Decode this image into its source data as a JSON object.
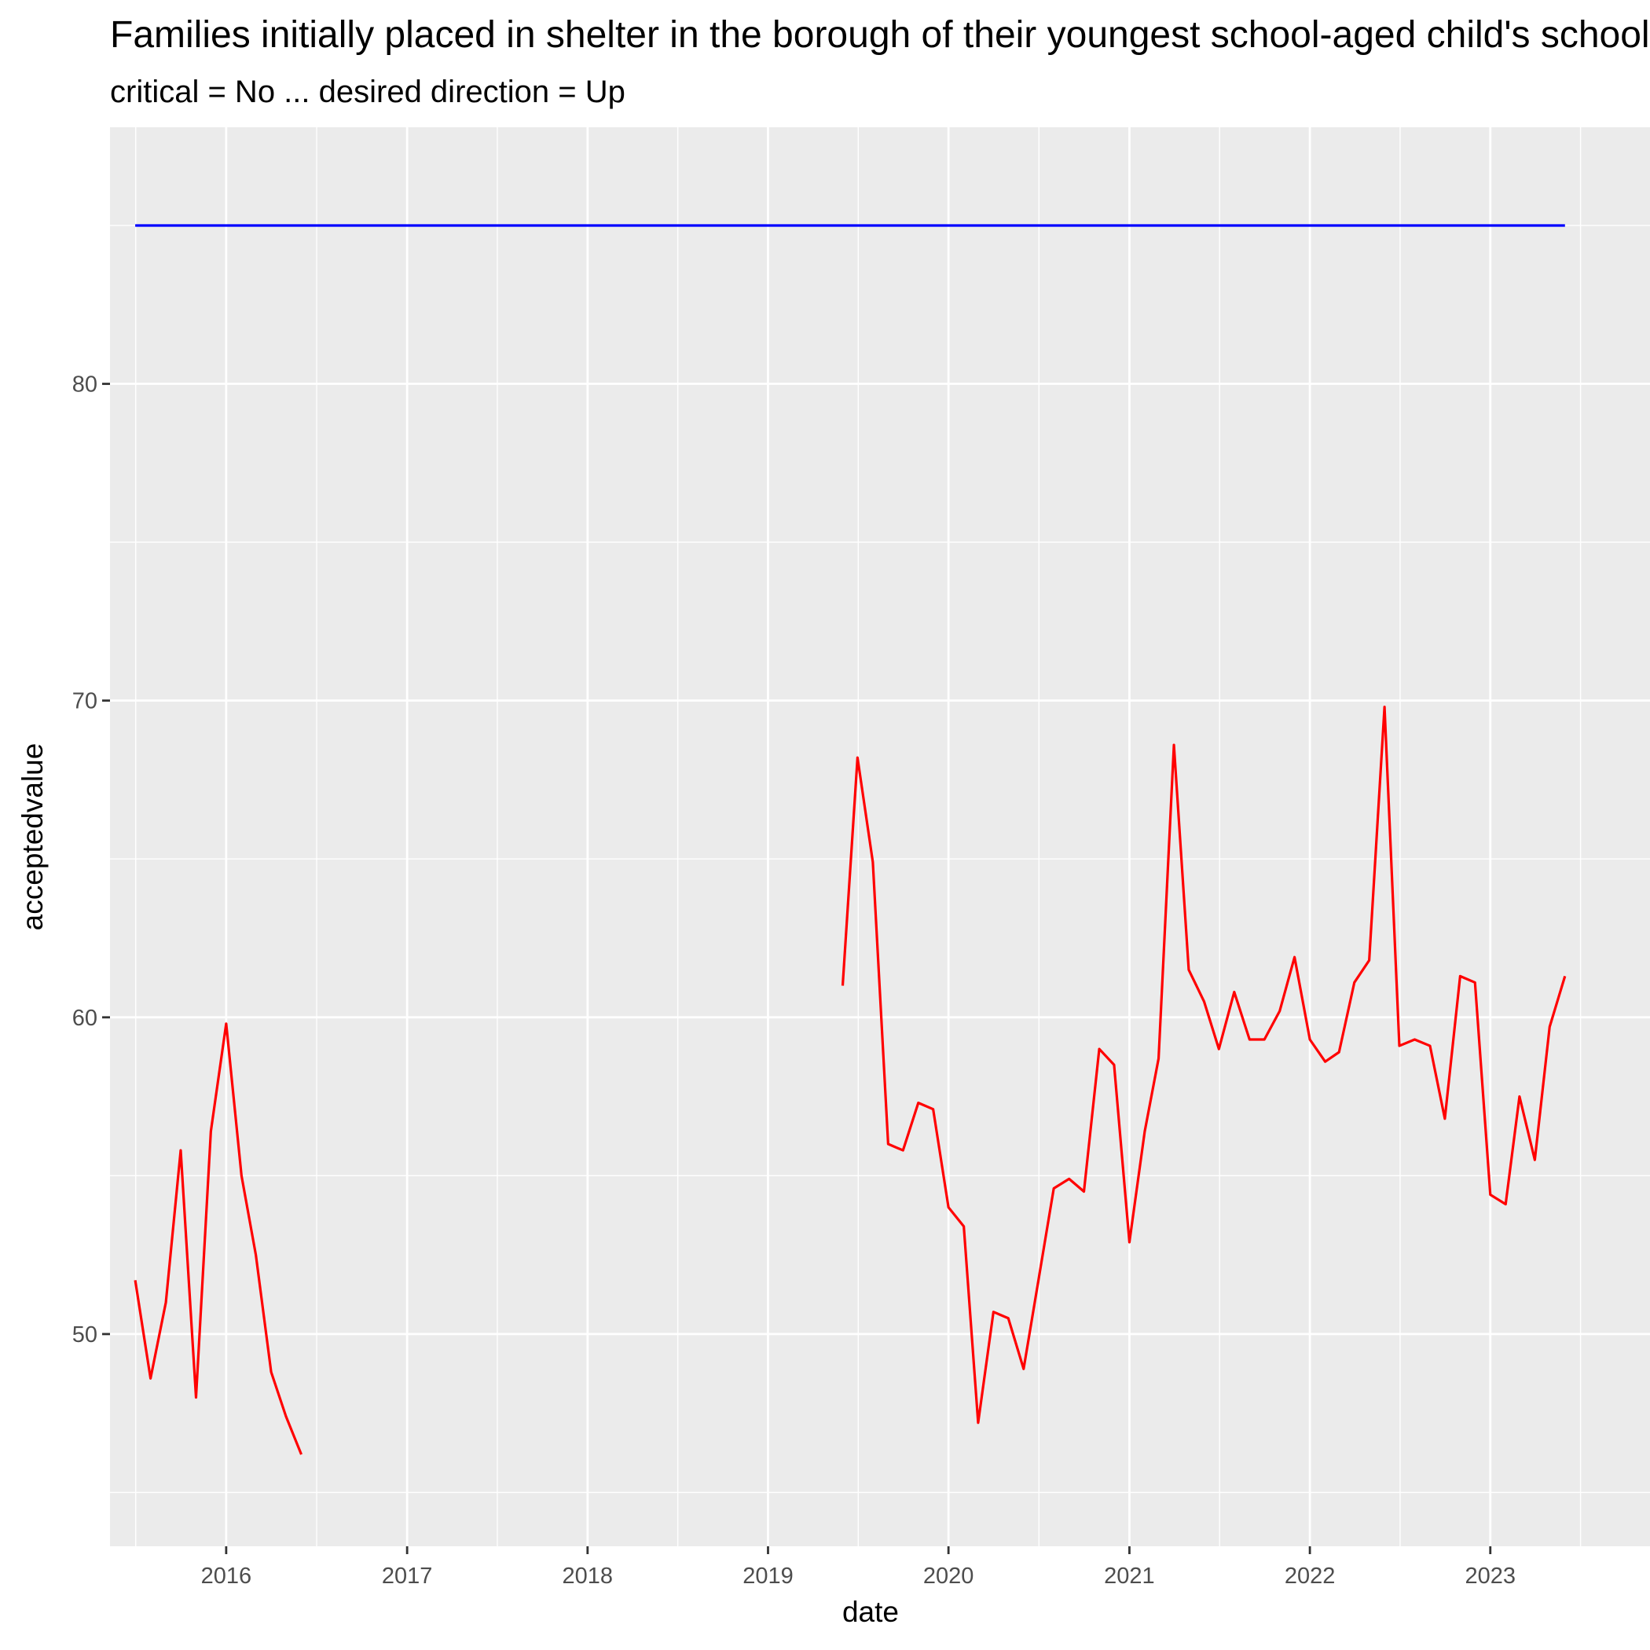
{
  "chart_data": {
    "type": "line",
    "title": "Families initially placed in shelter in the borough of their youngest school-aged child's school address",
    "subtitle": "critical = No ... desired direction = Up",
    "xlabel": "date",
    "ylabel": "acceptedvalue",
    "x_ticks": [
      "2016",
      "2017",
      "2018",
      "2019",
      "2020",
      "2021",
      "2022",
      "2023"
    ],
    "y_ticks": [
      50,
      60,
      70,
      80
    ],
    "xlim": [
      "2015-05-11",
      "2023-11-20"
    ],
    "ylim": [
      43.3,
      88.1
    ],
    "grid": true,
    "legend": "none",
    "colors": {
      "panel": "#ebebeb",
      "grid": "#ffffff",
      "target": "#0000ff",
      "actual": "#ff0000"
    },
    "series": [
      {
        "color": "#ff0000",
        "segments": [
          [
            [
              "2015-07-01",
              51.7
            ],
            [
              "2015-08-01",
              48.6
            ],
            [
              "2015-09-01",
              51.0
            ],
            [
              "2015-10-01",
              55.8
            ],
            [
              "2015-11-01",
              48.0
            ],
            [
              "2015-12-01",
              56.4
            ],
            [
              "2016-01-01",
              59.8
            ],
            [
              "2016-02-01",
              55.0
            ],
            [
              "2016-03-01",
              52.5
            ],
            [
              "2016-04-01",
              48.8
            ],
            [
              "2016-05-01",
              47.4
            ],
            [
              "2016-06-01",
              46.2
            ]
          ],
          [
            [
              "2019-06-01",
              61.0
            ],
            [
              "2019-07-01",
              68.2
            ],
            [
              "2019-08-01",
              64.9
            ],
            [
              "2019-09-01",
              56.0
            ],
            [
              "2019-10-01",
              55.8
            ],
            [
              "2019-11-01",
              57.3
            ],
            [
              "2019-12-01",
              57.1
            ],
            [
              "2020-01-01",
              54.0
            ],
            [
              "2020-02-01",
              53.4
            ],
            [
              "2020-03-01",
              47.2
            ],
            [
              "2020-04-01",
              50.7
            ],
            [
              "2020-05-01",
              50.5
            ],
            [
              "2020-06-01",
              48.9
            ],
            [
              "2020-07-01",
              51.7
            ],
            [
              "2020-08-01",
              54.6
            ],
            [
              "2020-09-01",
              54.9
            ],
            [
              "2020-10-01",
              54.5
            ],
            [
              "2020-11-01",
              59.0
            ],
            [
              "2020-12-01",
              58.5
            ],
            [
              "2021-01-01",
              52.9
            ],
            [
              "2021-02-01",
              56.4
            ],
            [
              "2021-03-01",
              58.7
            ],
            [
              "2021-04-01",
              68.6
            ],
            [
              "2021-05-01",
              61.5
            ],
            [
              "2021-06-01",
              60.5
            ],
            [
              "2021-07-01",
              59.0
            ],
            [
              "2021-08-01",
              60.8
            ],
            [
              "2021-09-01",
              59.3
            ],
            [
              "2021-10-01",
              59.3
            ],
            [
              "2021-11-01",
              60.2
            ],
            [
              "2021-12-01",
              61.9
            ],
            [
              "2022-01-01",
              59.3
            ],
            [
              "2022-02-01",
              58.6
            ],
            [
              "2022-03-01",
              58.9
            ],
            [
              "2022-04-01",
              61.1
            ],
            [
              "2022-05-01",
              61.8
            ],
            [
              "2022-06-01",
              69.8
            ],
            [
              "2022-07-01",
              59.1
            ],
            [
              "2022-08-01",
              59.3
            ],
            [
              "2022-09-01",
              59.1
            ],
            [
              "2022-10-01",
              56.8
            ],
            [
              "2022-11-01",
              61.3
            ],
            [
              "2022-12-01",
              61.1
            ],
            [
              "2023-01-01",
              54.4
            ],
            [
              "2023-02-01",
              54.1
            ],
            [
              "2023-03-01",
              57.5
            ],
            [
              "2023-04-01",
              55.5
            ],
            [
              "2023-05-01",
              59.7
            ],
            [
              "2023-06-01",
              61.3
            ]
          ]
        ]
      },
      {
        "color": "#0000ff",
        "segments": [
          [
            [
              "2015-07-01",
              85.0
            ],
            [
              "2023-06-01",
              85.0
            ]
          ]
        ]
      }
    ]
  }
}
